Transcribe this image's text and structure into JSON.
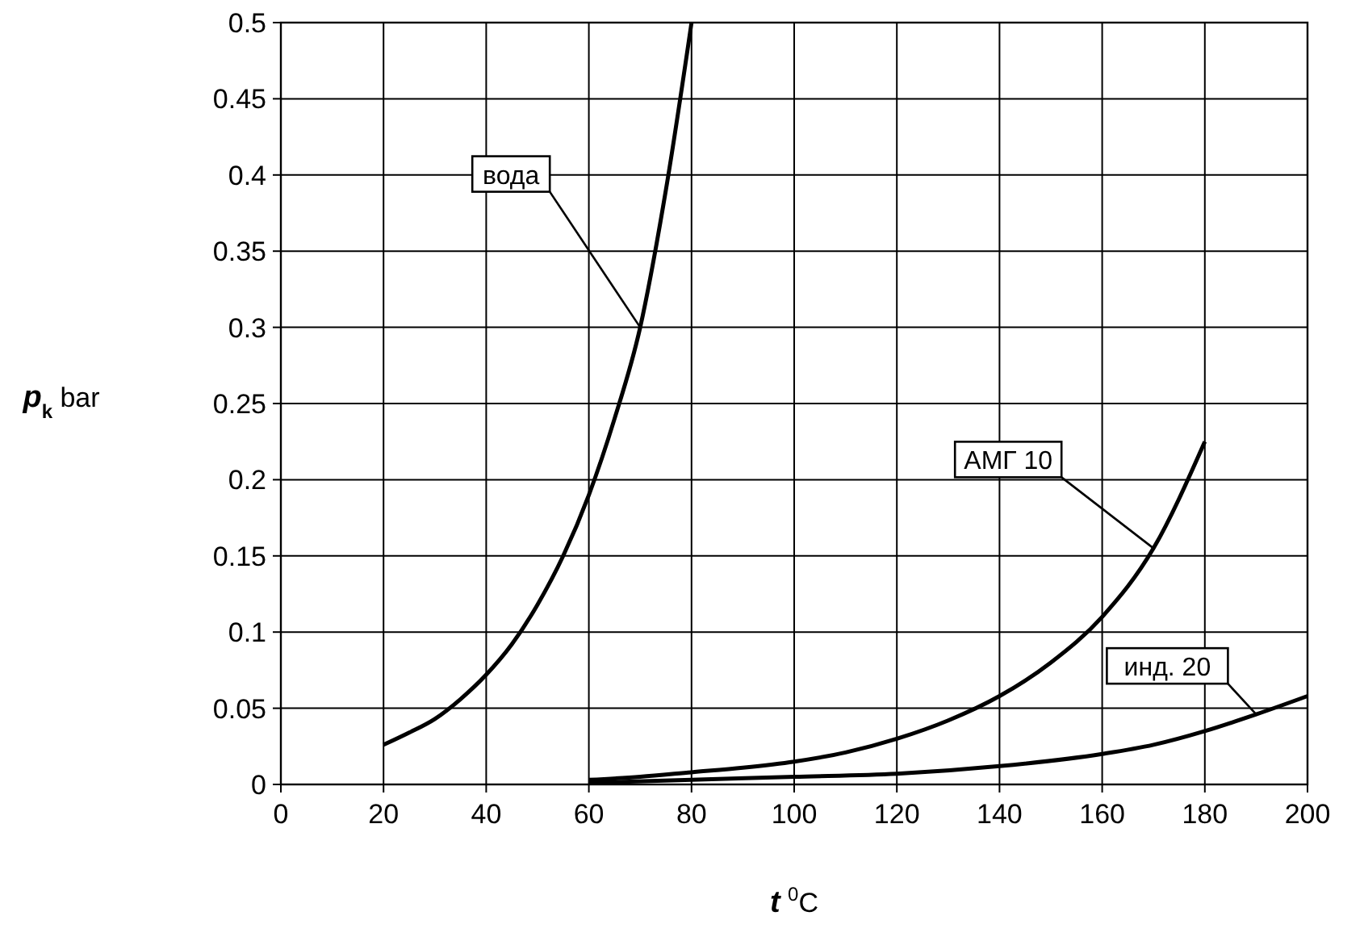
{
  "chart_data": {
    "type": "line",
    "xlabel": "t $^{0}$C",
    "ylabel": "p$_{k}$ bar",
    "xlim": [
      0,
      200
    ],
    "xticks": [
      0,
      20,
      40,
      60,
      80,
      100,
      120,
      140,
      160,
      180,
      200
    ],
    "ylim": [
      0,
      0.5
    ],
    "yticks": [
      0,
      0.05,
      0.1,
      0.15,
      0.2,
      0.25,
      0.3,
      0.35,
      0.4,
      0.45,
      0.5
    ],
    "grid": true,
    "marker": "none",
    "line_style": "solid",
    "series": [
      {
        "name": "вода",
        "color": "#000000",
        "x": [
          20,
          25,
          30,
          35,
          40,
          45,
          50,
          55,
          60,
          65,
          70,
          75,
          80
        ],
        "values": [
          0.026,
          0.034,
          0.043,
          0.056,
          0.072,
          0.092,
          0.118,
          0.15,
          0.19,
          0.24,
          0.3,
          0.39,
          0.5
        ]
      },
      {
        "name": "АМГ 10",
        "color": "#000000",
        "x": [
          60,
          70,
          80,
          90,
          100,
          110,
          120,
          130,
          140,
          150,
          160,
          170,
          180
        ],
        "values": [
          0.003,
          0.005,
          0.008,
          0.011,
          0.015,
          0.021,
          0.03,
          0.042,
          0.058,
          0.08,
          0.11,
          0.155,
          0.225
        ]
      },
      {
        "name": "инд. 20",
        "color": "#000000",
        "x": [
          60,
          80,
          100,
          120,
          140,
          160,
          170,
          180,
          190,
          200
        ],
        "values": [
          0.001,
          0.003,
          0.005,
          0.007,
          0.012,
          0.02,
          0.026,
          0.035,
          0.046,
          0.058
        ]
      }
    ]
  }
}
